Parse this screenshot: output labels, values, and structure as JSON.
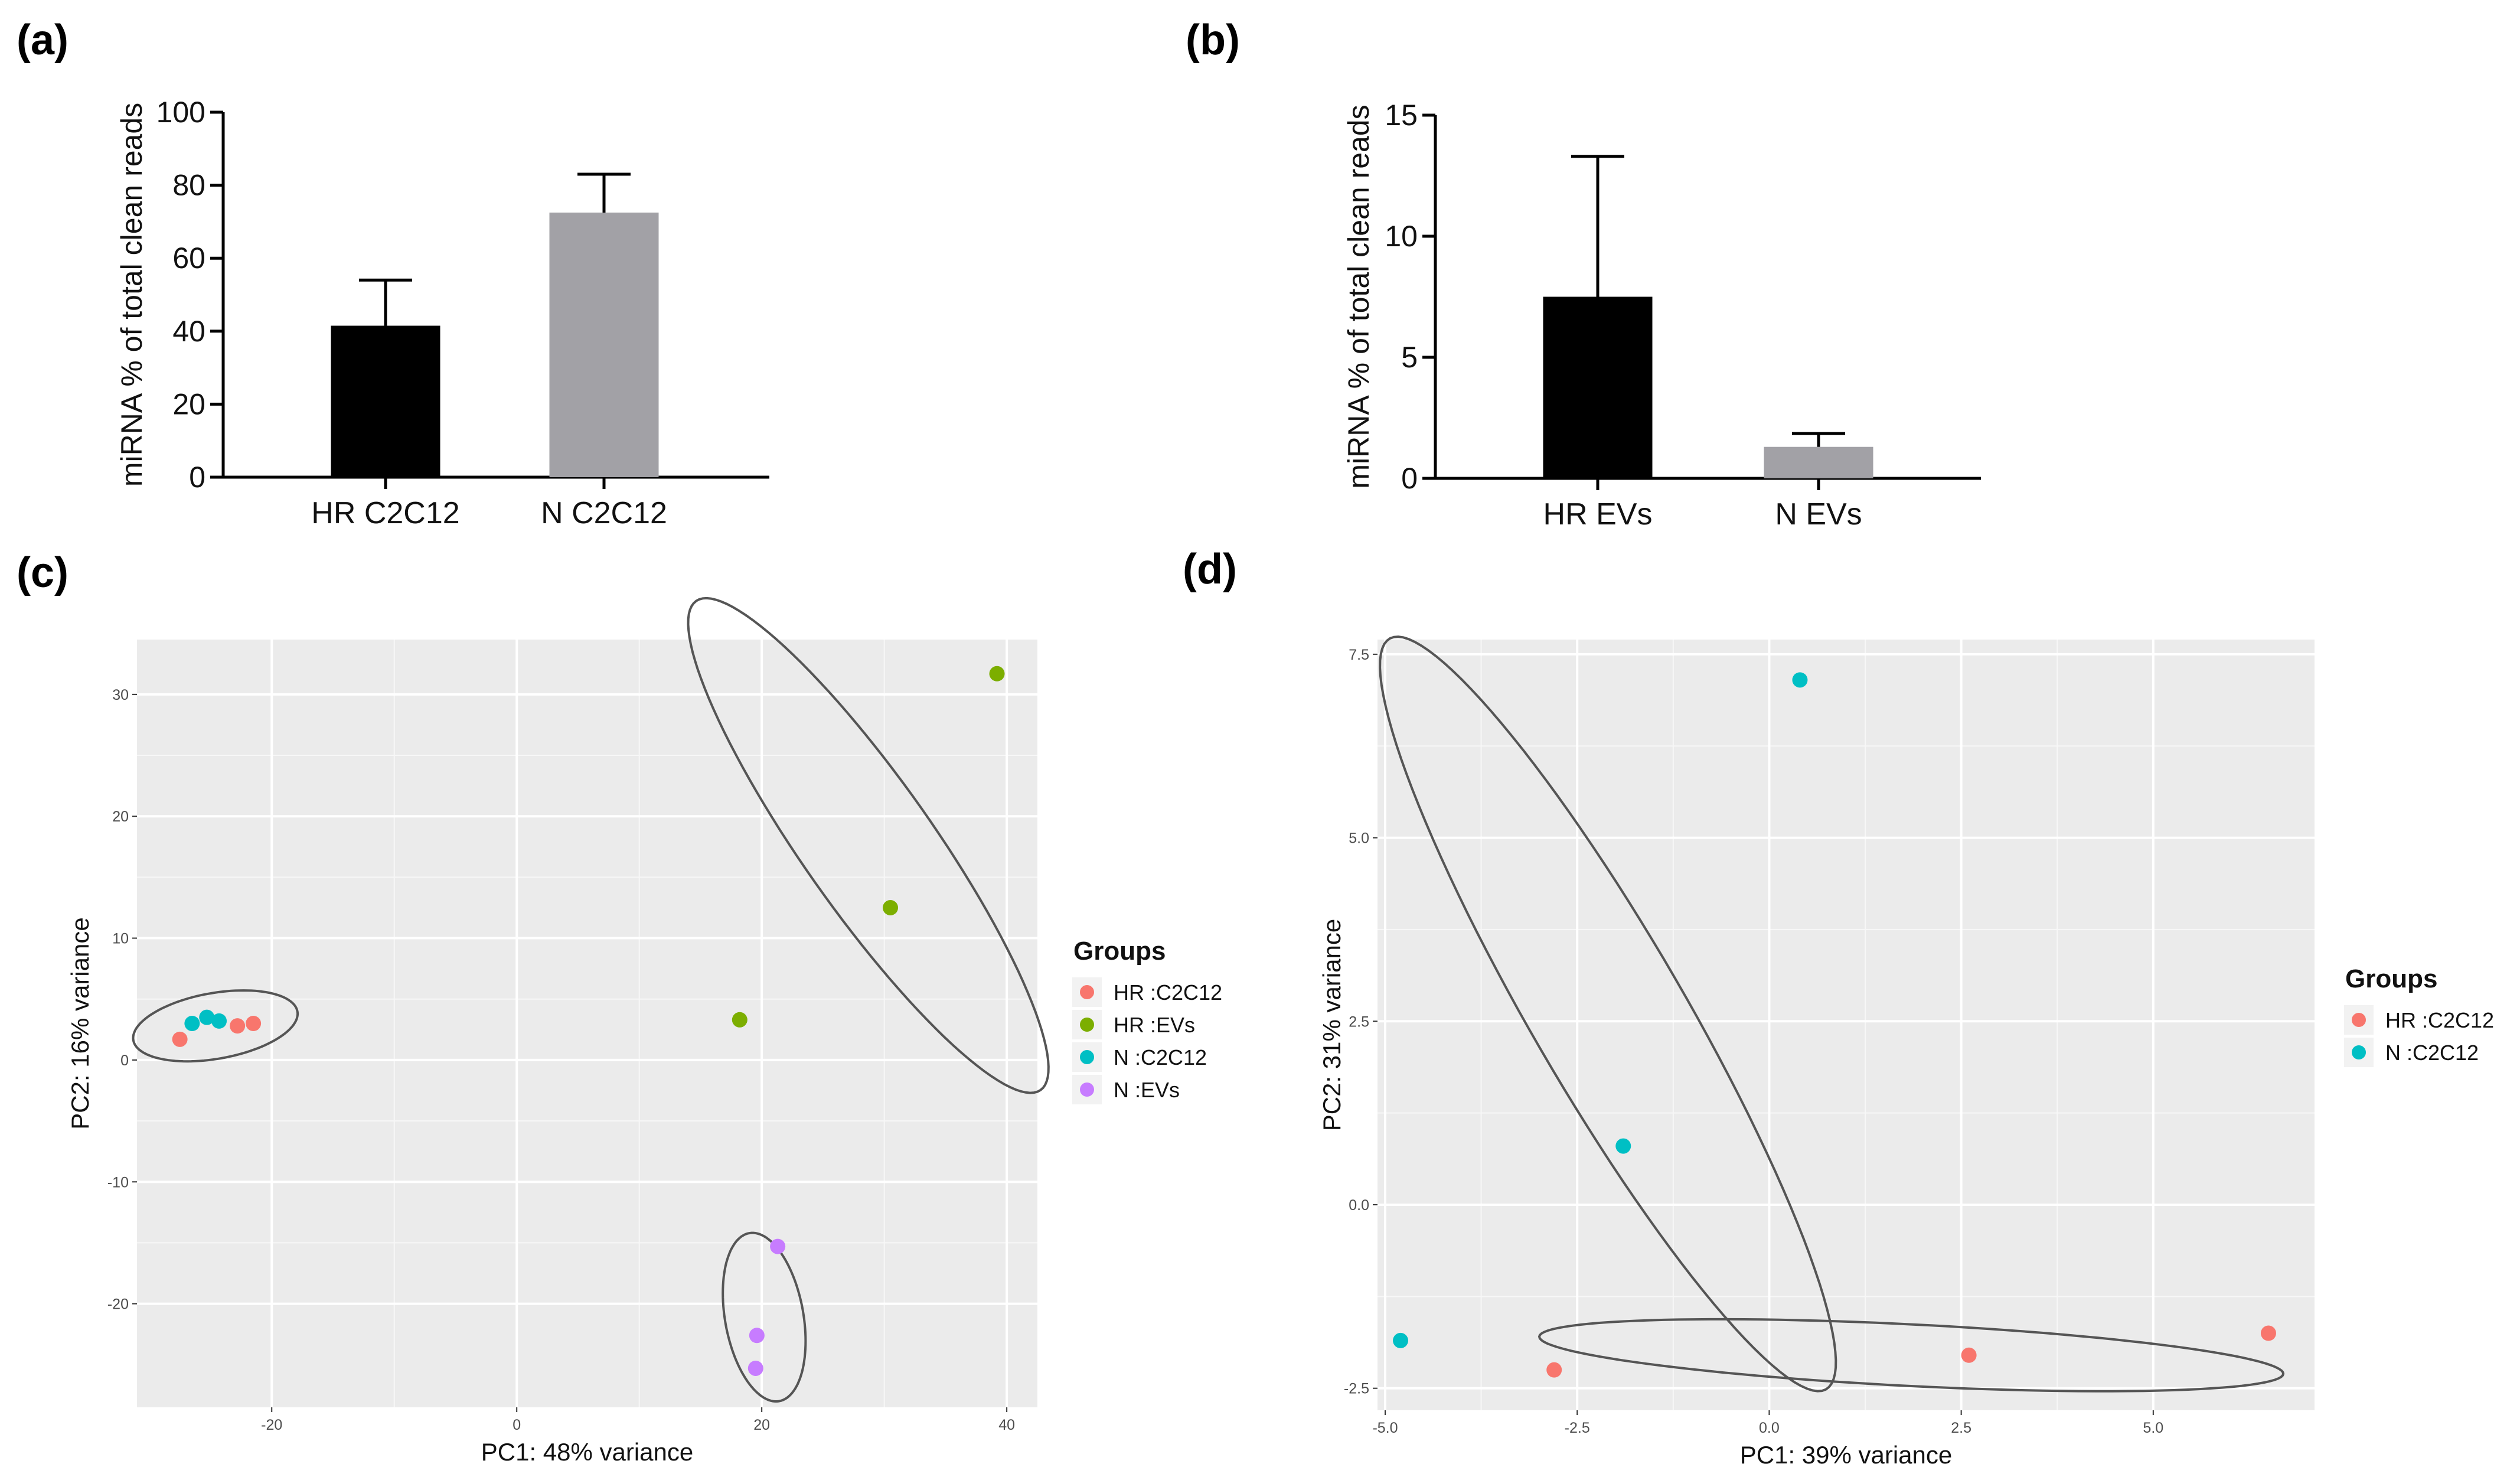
{
  "panels": [
    "(a)",
    "(b)",
    "(c)",
    "(d)"
  ],
  "chart_data": [
    {
      "id": "a",
      "type": "bar",
      "ylabel": "miRNA % of total clean reads",
      "ylim": [
        0,
        100
      ],
      "yticks": [
        0,
        20,
        40,
        60,
        80,
        100
      ],
      "categories": [
        "HR C2C12",
        "N C2C12"
      ],
      "values": [
        41.5,
        72.5
      ],
      "errors": [
        12.5,
        10.5
      ],
      "colors": [
        "#000000",
        "#a2a1a6"
      ]
    },
    {
      "id": "b",
      "type": "bar",
      "ylabel": "miRNA % of total clean reads",
      "ylim": [
        0,
        15
      ],
      "yticks": [
        0,
        5,
        10,
        15
      ],
      "categories": [
        "HR EVs",
        "N EVs"
      ],
      "values": [
        7.5,
        1.3
      ],
      "errors": [
        5.8,
        0.55
      ],
      "colors": [
        "#000000",
        "#a2a1a6"
      ]
    },
    {
      "id": "c",
      "type": "scatter",
      "xlabel": "PC1: 48% variance",
      "ylabel": "PC2: 16% variance",
      "xlim": [
        -31,
        42.5
      ],
      "ylim": [
        -28.5,
        34.5
      ],
      "xticks": [
        -20,
        0,
        20,
        40
      ],
      "yticks": [
        -20,
        -10,
        0,
        10,
        20,
        30
      ],
      "xticklabels": [
        "-20",
        "0",
        "20",
        "40"
      ],
      "yticklabels": [
        "-20",
        "-10",
        "0",
        "10",
        "20",
        "30"
      ],
      "legend_title": "Groups",
      "series": [
        {
          "name": "HR :C2C12",
          "color": "#f8766d",
          "points": [
            [
              -27.5,
              1.7
            ],
            [
              -22.8,
              2.8
            ],
            [
              -21.5,
              3.0
            ]
          ]
        },
        {
          "name": "HR :EVs",
          "color": "#7cae00",
          "points": [
            [
              18.2,
              3.3
            ],
            [
              30.5,
              12.5
            ],
            [
              39.2,
              31.7
            ]
          ]
        },
        {
          "name": "N :C2C12",
          "color": "#00bfc4",
          "points": [
            [
              -26.5,
              3.0
            ],
            [
              -25.3,
              3.5
            ],
            [
              -24.3,
              3.2
            ]
          ]
        },
        {
          "name": "N :EVs",
          "color": "#c77cff",
          "points": [
            [
              21.3,
              -15.3
            ],
            [
              19.6,
              -22.6
            ],
            [
              19.5,
              -25.3
            ]
          ]
        }
      ],
      "ellipses": [
        {
          "cx": -24.6,
          "cy": 2.8,
          "rx": 6.8,
          "ry": 2.7,
          "angle": 10
        },
        {
          "cx": 28.7,
          "cy": 17.6,
          "rx": 24.5,
          "ry": 5.3,
          "angle": -55
        },
        {
          "cx": 20.2,
          "cy": -21.1,
          "rx": 7.0,
          "ry": 3.2,
          "angle": -80
        }
      ]
    },
    {
      "id": "d",
      "type": "scatter",
      "xlabel": "PC1: 39% variance",
      "ylabel": "PC2: 31% variance",
      "xlim": [
        -5.1,
        7.1
      ],
      "ylim": [
        -2.8,
        7.7
      ],
      "xticks": [
        -5.0,
        -2.5,
        0.0,
        2.5,
        5.0
      ],
      "yticks": [
        -2.5,
        0.0,
        2.5,
        5.0,
        7.5
      ],
      "xticklabels": [
        "-5.0",
        "-2.5",
        "0.0",
        "2.5",
        "5.0"
      ],
      "yticklabels": [
        "-2.5",
        "0.0",
        "2.5",
        "5.0",
        "7.5"
      ],
      "legend_title": "Groups",
      "series": [
        {
          "name": "HR :C2C12",
          "color": "#f8766d",
          "points": [
            [
              -2.8,
              -2.25
            ],
            [
              2.6,
              -2.05
            ],
            [
              6.5,
              -1.75
            ]
          ]
        },
        {
          "name": "N :C2C12",
          "color": "#00bfc4",
          "points": [
            [
              0.4,
              7.15
            ],
            [
              -1.9,
              0.8
            ],
            [
              -4.8,
              -1.85
            ]
          ]
        }
      ],
      "ellipses": [
        {
          "cx": -2.1,
          "cy": 2.6,
          "rx": 5.85,
          "ry": 1.0,
          "angle": -61
        },
        {
          "cx": 1.85,
          "cy": -2.05,
          "rx": 4.85,
          "ry": 0.42,
          "angle": -3
        }
      ]
    }
  ]
}
